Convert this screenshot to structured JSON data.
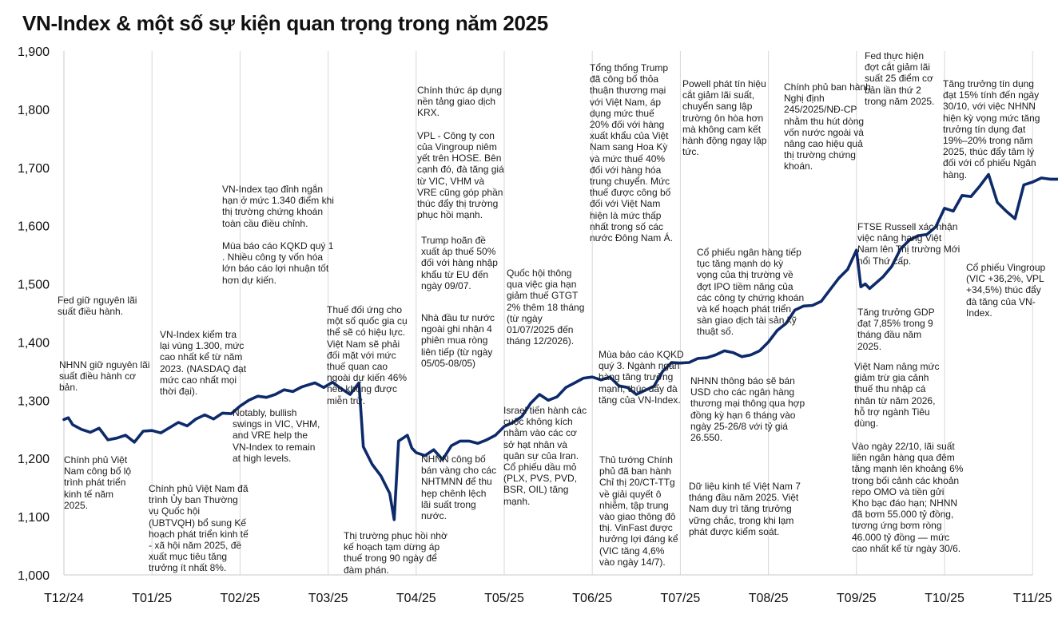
{
  "chart_data": {
    "type": "line",
    "title": "VN-Index & một số sự kiện quan trọng trong năm 2025",
    "series": [
      {
        "name": "",
        "color": "#0d2a6b",
        "points": [
          [
            0.0,
            1267
          ],
          [
            0.05,
            1270
          ],
          [
            0.1,
            1258
          ],
          [
            0.2,
            1250
          ],
          [
            0.3,
            1245
          ],
          [
            0.4,
            1252
          ],
          [
            0.5,
            1232
          ],
          [
            0.6,
            1235
          ],
          [
            0.7,
            1240
          ],
          [
            0.8,
            1228
          ],
          [
            0.9,
            1247
          ],
          [
            1.0,
            1248
          ],
          [
            1.1,
            1244
          ],
          [
            1.3,
            1262
          ],
          [
            1.4,
            1256
          ],
          [
            1.5,
            1268
          ],
          [
            1.6,
            1275
          ],
          [
            1.7,
            1268
          ],
          [
            1.8,
            1278
          ],
          [
            1.9,
            1277
          ],
          [
            2.0,
            1290
          ],
          [
            2.1,
            1300
          ],
          [
            2.2,
            1307
          ],
          [
            2.3,
            1305
          ],
          [
            2.4,
            1310
          ],
          [
            2.5,
            1318
          ],
          [
            2.6,
            1315
          ],
          [
            2.7,
            1323
          ],
          [
            2.85,
            1330
          ],
          [
            2.95,
            1322
          ],
          [
            3.05,
            1331
          ],
          [
            3.15,
            1320
          ],
          [
            3.25,
            1310
          ],
          [
            3.35,
            1330
          ],
          [
            3.4,
            1220
          ],
          [
            3.5,
            1190
          ],
          [
            3.6,
            1170
          ],
          [
            3.7,
            1140
          ],
          [
            3.75,
            1095
          ],
          [
            3.8,
            1230
          ],
          [
            3.9,
            1240
          ],
          [
            3.95,
            1218
          ],
          [
            4.0,
            1210
          ],
          [
            4.1,
            1205
          ],
          [
            4.2,
            1215
          ],
          [
            4.3,
            1198
          ],
          [
            4.4,
            1222
          ],
          [
            4.5,
            1230
          ],
          [
            4.6,
            1230
          ],
          [
            4.7,
            1226
          ],
          [
            4.8,
            1232
          ],
          [
            4.9,
            1240
          ],
          [
            5.0,
            1255
          ],
          [
            5.1,
            1262
          ],
          [
            5.2,
            1272
          ],
          [
            5.3,
            1295
          ],
          [
            5.4,
            1310
          ],
          [
            5.5,
            1300
          ],
          [
            5.6,
            1306
          ],
          [
            5.7,
            1322
          ],
          [
            5.8,
            1330
          ],
          [
            5.9,
            1338
          ],
          [
            6.0,
            1340
          ],
          [
            6.1,
            1335
          ],
          [
            6.2,
            1340
          ],
          [
            6.3,
            1325
          ],
          [
            6.4,
            1322
          ],
          [
            6.5,
            1310
          ],
          [
            6.6,
            1317
          ],
          [
            6.7,
            1324
          ],
          [
            6.8,
            1350
          ],
          [
            6.9,
            1365
          ],
          [
            7.0,
            1364
          ],
          [
            7.1,
            1365
          ],
          [
            7.2,
            1372
          ],
          [
            7.3,
            1373
          ],
          [
            7.4,
            1378
          ],
          [
            7.5,
            1385
          ],
          [
            7.6,
            1382
          ],
          [
            7.7,
            1375
          ],
          [
            7.8,
            1378
          ],
          [
            7.9,
            1385
          ],
          [
            8.0,
            1400
          ],
          [
            8.1,
            1420
          ],
          [
            8.2,
            1432
          ],
          [
            8.3,
            1455
          ],
          [
            8.4,
            1462
          ],
          [
            8.5,
            1463
          ],
          [
            8.6,
            1470
          ],
          [
            8.7,
            1490
          ],
          [
            8.8,
            1510
          ],
          [
            8.9,
            1525
          ],
          [
            9.0,
            1558
          ],
          [
            9.05,
            1495
          ],
          [
            9.1,
            1500
          ],
          [
            9.15,
            1492
          ],
          [
            9.3,
            1512
          ],
          [
            9.4,
            1530
          ],
          [
            9.5,
            1560
          ],
          [
            9.6,
            1575
          ],
          [
            9.7,
            1583
          ],
          [
            9.8,
            1585
          ],
          [
            9.9,
            1598
          ],
          [
            10.0,
            1630
          ],
          [
            10.1,
            1625
          ],
          [
            10.2,
            1652
          ],
          [
            10.3,
            1650
          ],
          [
            10.4,
            1668
          ],
          [
            10.5,
            1688
          ],
          [
            10.6,
            1640
          ],
          [
            10.7,
            1625
          ],
          [
            10.8,
            1612
          ],
          [
            10.9,
            1670
          ],
          [
            11.0,
            1675
          ],
          [
            11.1,
            1682
          ],
          [
            11.2,
            1680
          ],
          [
            11.3,
            1680
          ],
          [
            11.4,
            1678
          ],
          [
            11.5,
            1695
          ],
          [
            11.6,
            1655
          ],
          [
            11.7,
            1625
          ],
          [
            11.8,
            1650
          ],
          [
            11.9,
            1675
          ],
          [
            12.0,
            1680
          ],
          [
            12.1,
            1690
          ],
          [
            12.2,
            1660
          ],
          [
            12.3,
            1648
          ],
          [
            12.4,
            1640
          ],
          [
            12.5,
            1672
          ],
          [
            12.6,
            1668
          ],
          [
            12.7,
            1665
          ],
          [
            12.8,
            1658
          ],
          [
            12.9,
            1655
          ],
          [
            13.0,
            1658
          ],
          [
            13.1,
            1650
          ],
          [
            13.2,
            1680
          ],
          [
            13.3,
            1688
          ],
          [
            13.4,
            1700
          ],
          [
            13.5,
            1728
          ],
          [
            13.6,
            1725
          ],
          [
            13.7,
            1755
          ],
          [
            13.8,
            1760
          ],
          [
            13.9,
            1755
          ],
          [
            14.0,
            1766
          ],
          [
            14.1,
            1700
          ],
          [
            14.2,
            1640
          ],
          [
            14.3,
            1660
          ],
          [
            14.4,
            1680
          ],
          [
            14.5,
            1685
          ],
          [
            14.6,
            1675
          ],
          [
            14.7,
            1625
          ],
          [
            14.8,
            1650
          ],
          [
            14.9,
            1615
          ],
          [
            15.0,
            1600
          ],
          [
            15.1,
            1598
          ],
          [
            15.2,
            1580
          ],
          [
            15.3,
            1630
          ],
          [
            15.4,
            1628
          ],
          [
            15.5,
            1640
          ],
          [
            15.6,
            1650
          ],
          [
            15.7,
            1657
          ],
          [
            15.8,
            1660
          ],
          [
            15.9,
            1668
          ],
          [
            16.0,
            1672
          ],
          [
            16.1,
            1685
          ],
          [
            16.2,
            1690
          ]
        ]
      }
    ],
    "x_ticks": [
      "T12/24",
      "T01/25",
      "T02/25",
      "T03/25",
      "T04/25",
      "T05/25",
      "T06/25",
      "T07/25",
      "T08/25",
      "T09/25",
      "T10/25",
      "T11/25"
    ],
    "y_ticks": [
      "1,000",
      "1,100",
      "1,200",
      "1,300",
      "1,400",
      "1,500",
      "1,600",
      "1,700",
      "1,800",
      "1,900"
    ],
    "ylim": [
      1000,
      1900
    ],
    "grid": "vertical",
    "annotations": [
      "Fed giữ nguyên lãi suất điều hành.",
      "NHNN giữ nguyên lãi suất điều hành cơ bản.",
      "Chính phủ Việt Nam công bố lộ trình phát triển kinh tế năm 2025.",
      "VN-Index kiểm tra lại vùng 1.300, mức cao nhất kể từ năm 2023. (NASDAQ đạt mức cao nhất mọi thời đại).",
      "Chính phủ Việt Nam đã trình Ủy ban Thường vụ Quốc hội (UBTVQH) bổ sung Kế hoạch phát triển kinh tế - xã hội năm 2025, đề xuất mục tiêu tăng trưởng ít nhất 8%.",
      "VN-Index tạo đỉnh ngắn hạn ở mức 1.340 điểm khi thị trường chứng khoán toàn cầu điều chỉnh.\n\nMùa báo cáo KQKD quý 1 . Nhiều công ty vốn hóa lớn báo cáo lợi nhuận tốt hơn dự kiến.",
      "Notably, bullish swings in VIC, VHM, and VRE help the VN-Index to remain at high levels.",
      "Thuế đối ứng cho một số quốc gia cụ thể sẽ có hiệu lực. Việt Nam sẽ phải đối mặt với mức thuế quan cao ngoài dự kiến 46% nếu không được miễn trừ.",
      "Thị trường phục hồi nhờ kế hoạch tạm dừng áp thuế trong 90 ngày để đàm phán.",
      "Chính thức áp dụng nền tảng giao dịch KRX.\n\nVPL - Công ty con của Vingroup niêm yết trên HOSE. Bên cạnh đó, đà tăng giá từ VIC, VHM và VRE cũng góp phần thúc đẩy thị trường phục hồi mạnh.",
      "Trump hoãn đề xuất áp thuế 50% đối với hàng nhập khẩu từ EU đến ngày 09/07.",
      "Nhà đầu tư nước ngoài ghi nhận 4 phiên mua ròng liên tiếp (từ ngày 05/05-08/05)",
      "NHNN công bố bán vàng cho các NHTMNN để thu hẹp chênh lệch lãi suất trong nước.",
      "Quốc hội thông qua việc gia hạn giảm thuế GTGT 2% thêm 18 tháng (từ ngày 01/07/2025 đến tháng 12/2026).",
      "Israel tiến hành các cuộc không kích nhằm vào các cơ sở hạt nhân và quân sự của Iran. Cổ phiếu dầu mỏ (PLX, PVS, PVD, BSR, OIL) tăng mạnh.",
      "Tổng thống Trump đã công bố thỏa thuận thương mại với Việt Nam, áp dụng mức thuế 20% đối với hàng xuất khẩu của Việt Nam sang Hoa Kỳ và mức thuế 40% đối với hàng hóa trung chuyển. Mức thuế được công bố đối với Việt Nam hiện là mức thấp nhất trong số các nước Đông Nam Á.",
      "Mùa báo cáo KQKD quý 3. Ngành ngân hàng tăng trưởng mạnh, thúc đẩy đà tăng của VN-Index.",
      "Thủ tướng Chính phủ đã ban hành Chỉ thị 20/CT-TTg về giải quyết ô nhiễm, tập trung vào giao thông đô thị. VinFast được hưởng lợi đáng kể (VIC tăng 4,6% vào ngày 14/7).",
      "Powell phát tín hiệu cắt giảm lãi suất, chuyển sang lập trường ôn hòa hơn mà không cam kết hành động ngay lập tức.",
      "Cổ phiếu ngân hàng tiếp tục tăng mạnh do kỳ vọng của thị trường về đợt IPO tiềm năng của các công ty chứng khoán và kế hoạch phát triển sàn giao dịch tài sản kỹ thuật số.",
      "NHNN thông báo sẽ bán USD cho các ngân hàng thương mại thông qua hợp đồng kỳ hạn 6 tháng vào ngày 25-26/8 với tỷ giá 26.550.",
      "Dữ liệu kinh tế Việt Nam 7 tháng đầu năm 2025. Việt Nam duy trì tăng trưởng vững chắc, trong khi lạm phát được kiểm soát.",
      "Chính phủ ban hành Nghị định 245/2025/NĐ-CP nhằm thu hút dòng vốn nước ngoài và nâng cao hiệu quả thị trường chứng khoán.",
      "Fed thực hiện đợt cắt giảm lãi suất 25 điểm cơ bản lần thứ 2 trong năm 2025.",
      "FTSE Russell xác nhận việc nâng hạng Việt Nam lên Thị trường Mới nổi Thứ cấp.",
      "Tăng trưởng GDP đạt 7,85% trong 9 tháng đầu năm 2025.",
      "Việt Nam nâng mức giảm trừ gia cảnh thuế thu nhập cá nhân từ năm 2026, hỗ trợ ngành Tiêu dùng.",
      "Vào ngày 22/10, lãi suất liên ngân hàng qua đêm tăng mạnh lên khoảng 6% trong bối cảnh các khoản repo OMO và tiền gửi Kho bạc đáo hạn; NHNN đã bơm 55.000 tỷ đồng, tương ứng bơm ròng 46.000 tỷ đồng — mức cao nhất kể từ ngày 30/6.",
      "Tăng trưởng tín dụng đạt 15% tính đến ngày 30/10, với việc NHNN hiện kỳ vọng mức tăng trưởng tín dụng đạt 19%–20% trong năm 2025, thúc đẩy tâm lý đối với cổ phiếu Ngân hàng.",
      "Cổ phiếu Vingroup (VIC +36,2%, VPL +34,5%) thúc đẩy đà tăng của VN-Index."
    ]
  }
}
